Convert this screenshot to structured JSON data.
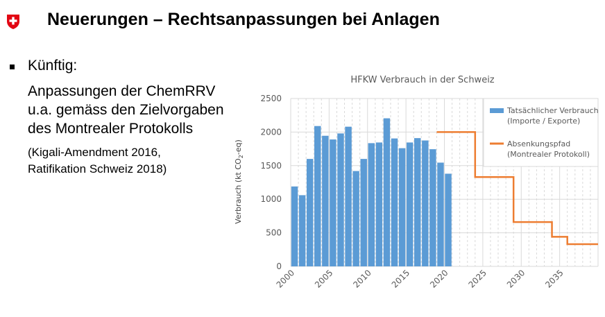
{
  "header": {
    "title": "Neuerungen – Rechtsanpassungen bei Anlagen",
    "logo_icon": "swiss-cross-shield-icon"
  },
  "content": {
    "bullet_heading": "Künftig:",
    "body_lines": [
      "Anpassungen der ChemRRV",
      "u.a. gemäss den Zielvorgaben",
      "des Montrealer Protokolls"
    ],
    "note_lines": [
      "(Kigali-Amendment 2016,",
      "Ratifikation Schweiz 2018)"
    ]
  },
  "chart_data": {
    "type": "bar",
    "title": "HFKW Verbrauch in der Schweiz",
    "ylabel_pre": "Verbrauch (kt CO",
    "ylabel_sub": "2",
    "ylabel_post": "-eq)",
    "xlabel": "",
    "x_range": [
      2000,
      2039
    ],
    "ylim": [
      0,
      2500
    ],
    "y_ticks": [
      "0",
      "500",
      "1000",
      "1500",
      "2000",
      "2500"
    ],
    "x_tick_labels": [
      "2000",
      "2005",
      "2010",
      "2015",
      "2020",
      "2025",
      "2030",
      "2035"
    ],
    "grid": true,
    "legend_position": "top-right",
    "colors": {
      "bars": "#5b9bd5",
      "line": "#ed7d31",
      "grid": "#d9d9d9",
      "text": "#595959"
    },
    "series": [
      {
        "name": "Tatsächlicher Verbrauch",
        "name_line2": "(Importe / Exporte)",
        "type": "bar",
        "x": [
          2000,
          2001,
          2002,
          2003,
          2004,
          2005,
          2006,
          2007,
          2008,
          2009,
          2010,
          2011,
          2012,
          2013,
          2014,
          2015,
          2016,
          2017,
          2018,
          2019,
          2020
        ],
        "values": [
          1190,
          1060,
          1600,
          2090,
          1945,
          1890,
          1980,
          2080,
          1420,
          1600,
          1835,
          1845,
          2205,
          1905,
          1760,
          1845,
          1910,
          1875,
          1745,
          1545,
          1380
        ]
      },
      {
        "name": "Absenkungspfad",
        "name_line2": "(Montrealer Protokoll)",
        "type": "step-line",
        "steps": [
          {
            "from": 2019,
            "to": 2024,
            "value": 2000
          },
          {
            "from": 2024,
            "to": 2029,
            "value": 1330
          },
          {
            "from": 2029,
            "to": 2034,
            "value": 660
          },
          {
            "from": 2034,
            "to": 2036,
            "value": 440
          },
          {
            "from": 2036,
            "to": 2040,
            "value": 330
          }
        ]
      }
    ]
  }
}
